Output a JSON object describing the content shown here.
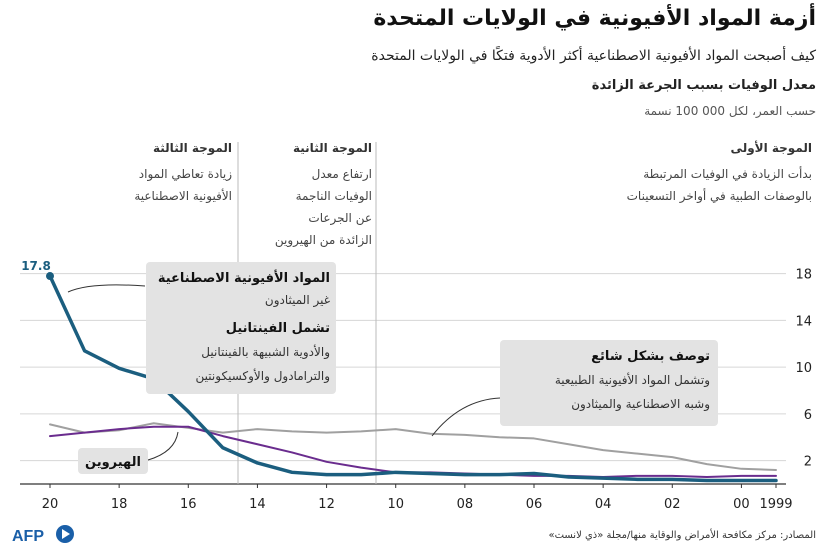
{
  "header": {
    "title": "أزمة المواد الأفيونية في الولايات المتحدة",
    "subtitle": "كيف أصبحت المواد الأفيونية الاصطناعية أكثر الأدوية فتكًا في الولايات المتحدة",
    "metric": "معدل الوفيات بسبب الجرعة الزائدة",
    "unit": "حسب العمر، لكل 000 100 نسمة"
  },
  "waves": [
    {
      "title": "الموجة الأولى",
      "lines": [
        "بدأت الزيادة في الوفيات المرتبطة",
        "بالوصفات الطبية في أواخر التسعينات"
      ]
    },
    {
      "title": "الموجة الثانية",
      "lines": [
        "ارتفاع معدل",
        "الوفيات الناجمة",
        "عن الجرعات",
        "الزائدة من الهيروين"
      ]
    },
    {
      "title": "الموجة الثالثة",
      "lines": [
        "زيادة تعاطي المواد",
        "الأفيونية الاصطناعية"
      ]
    }
  ],
  "callouts": {
    "synthetic": {
      "title": "المواد الأفيونية الاصطناعية",
      "line1": "غير الميثادون",
      "title2": "تشمل الفينتانيل",
      "line2": "والأدوية الشبيهة بالفينتانيل",
      "line3": "والترامادول والأوكسيكونتين"
    },
    "prescription": {
      "title": "توصف بشكل شائع",
      "line1": "وتشمل المواد الأفيونية الطبيعية",
      "line2": "وشبه الاصطناعية والميثادون"
    },
    "heroin": {
      "title": "الهيروين"
    }
  },
  "peak_label": "17.8",
  "source": "المصادر: مركز مكافحة الأمراض والوقاية منها/مجلة «ذي لانست»",
  "logo": "AFP",
  "colors": {
    "synthetic": "#1b5e7f",
    "heroin": "#6a2c8e",
    "prescription": "#a0a0a0"
  },
  "chart_data": {
    "type": "line",
    "x": [
      1999,
      2000,
      2001,
      2002,
      2003,
      2004,
      2005,
      2006,
      2007,
      2008,
      2009,
      2010,
      2011,
      2012,
      2013,
      2014,
      2015,
      2016,
      2017,
      2018,
      2019,
      2020
    ],
    "x_tick_labels": [
      "1999",
      "00",
      "02",
      "04",
      "06",
      "08",
      "10",
      "12",
      "14",
      "16",
      "18",
      "20"
    ],
    "x_tick_values": [
      1999,
      2000,
      2002,
      2004,
      2006,
      2008,
      2010,
      2012,
      2014,
      2016,
      2018,
      2020
    ],
    "ylim": [
      0,
      19
    ],
    "y_ticks": [
      2,
      6,
      10,
      14,
      18
    ],
    "series": [
      {
        "name": "المواد الأفيونية الاصطناعية",
        "color": "#1b5e7f",
        "values": [
          0.3,
          0.3,
          0.3,
          0.4,
          0.4,
          0.5,
          0.6,
          0.9,
          0.8,
          0.8,
          0.9,
          1.0,
          0.8,
          0.8,
          1.0,
          1.8,
          3.1,
          6.2,
          9.0,
          9.9,
          11.4,
          17.8
        ]
      },
      {
        "name": "الهيروين",
        "color": "#6a2c8e",
        "values": [
          0.7,
          0.7,
          0.6,
          0.7,
          0.7,
          0.6,
          0.7,
          0.7,
          0.8,
          0.9,
          1.0,
          1.0,
          1.4,
          1.9,
          2.7,
          3.4,
          4.1,
          4.9,
          4.9,
          4.7,
          4.4,
          4.1
        ]
      },
      {
        "name": "توصف بشكل شائع",
        "color": "#a0a0a0",
        "values": [
          1.2,
          1.3,
          1.7,
          2.3,
          2.6,
          2.9,
          3.4,
          3.9,
          4.0,
          4.2,
          4.3,
          4.7,
          4.5,
          4.4,
          4.5,
          4.7,
          4.4,
          4.8,
          5.2,
          4.6,
          4.4,
          5.1
        ]
      }
    ]
  }
}
